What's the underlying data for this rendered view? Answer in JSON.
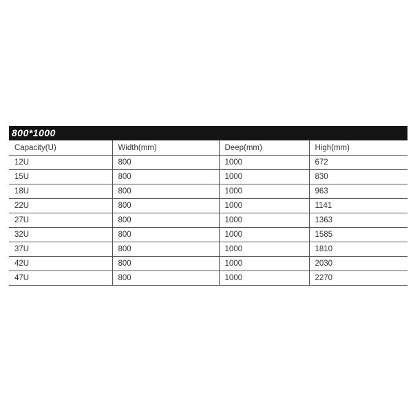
{
  "title": "800*1000",
  "columns": [
    "Capacity(U)",
    "Width(mm)",
    "Deep(mm)",
    "High(mm)"
  ],
  "rows": [
    [
      "12U",
      "800",
      "1000",
      "672"
    ],
    [
      "15U",
      "800",
      "1000",
      "830"
    ],
    [
      "18U",
      "800",
      "1000",
      "963"
    ],
    [
      "22U",
      "800",
      "1000",
      "1141"
    ],
    [
      "27U",
      "800",
      "1000",
      "1363"
    ],
    [
      "32U",
      "800",
      "1000",
      "1585"
    ],
    [
      "37U",
      "800",
      "1000",
      "1810"
    ],
    [
      "42U",
      "800",
      "1000",
      "2030"
    ],
    [
      "47U",
      "800",
      "1000",
      "2270"
    ]
  ]
}
